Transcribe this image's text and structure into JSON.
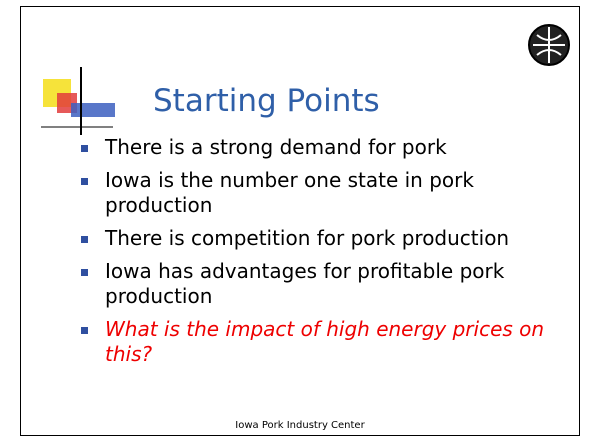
{
  "slide": {
    "title": "Starting Points",
    "bullets": [
      {
        "text": "There is a strong demand for pork",
        "italic": false
      },
      {
        "text": "Iowa is the number one state in pork production",
        "italic": false
      },
      {
        "text": "There is competition for pork production",
        "italic": false
      },
      {
        "text": "Iowa has advantages for profitable pork production",
        "italic": false
      },
      {
        "text": "What is the impact of high energy prices on this?",
        "italic": true
      }
    ],
    "footer": "Iowa Pork Industry Center"
  }
}
